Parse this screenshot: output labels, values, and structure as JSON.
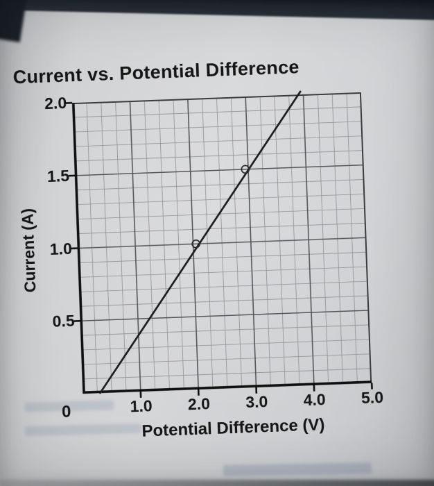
{
  "colors": {
    "paper": "#cdcfd2",
    "ink": "#161616",
    "grid_minor": "#8e9092",
    "grid_major": "#55575a",
    "dark_edge": "#20262e"
  },
  "chart_data": {
    "type": "line",
    "title": "Current vs. Potential Difference",
    "xlabel": "Potential Difference (V)",
    "ylabel": "Current (A)",
    "xlim": [
      0,
      5.0
    ],
    "ylim": [
      0,
      2.0
    ],
    "x_major_step": 1.0,
    "x_minor_step": 0.25,
    "y_major_step": 0.5,
    "y_minor_step": 0.1,
    "grid": true,
    "legend": false,
    "origin_label": "0",
    "x_ticks": [
      {
        "v": 1.0,
        "label": "1.0"
      },
      {
        "v": 2.0,
        "label": "2.0"
      },
      {
        "v": 3.0,
        "label": "3.0"
      },
      {
        "v": 4.0,
        "label": "4.0"
      },
      {
        "v": 5.0,
        "label": "5.0"
      }
    ],
    "y_ticks": [
      {
        "v": 2.0,
        "label": "2.0"
      },
      {
        "v": 1.5,
        "label": "1.5"
      },
      {
        "v": 1.0,
        "label": "1.0"
      },
      {
        "v": 0.5,
        "label": "0.5"
      }
    ],
    "series": [
      {
        "name": "best-fit line",
        "x": [
          0.3,
          3.95
        ],
        "y": [
          0.0,
          2.02
        ]
      }
    ],
    "marked_points": [
      {
        "x": 2.05,
        "y": 1.0
      },
      {
        "x": 2.95,
        "y": 1.5
      }
    ]
  }
}
